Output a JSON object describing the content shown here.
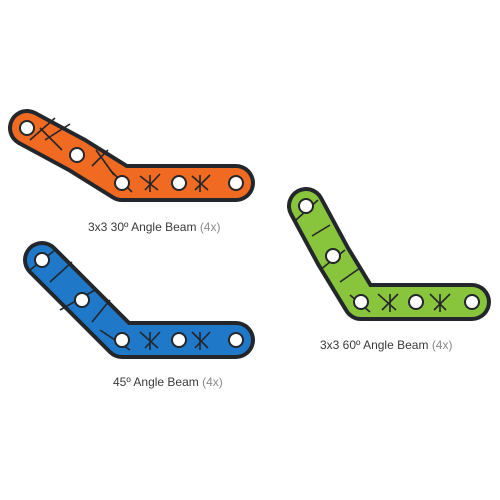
{
  "parts": [
    {
      "id": "beam-30",
      "label": "3x3 30º Angle Beam",
      "quantity": "(4x)",
      "color": "#f06a22"
    },
    {
      "id": "beam-45",
      "label": "45º Angle Beam",
      "quantity": "(4x)",
      "color": "#1f78c8"
    },
    {
      "id": "beam-60",
      "label": "3x3 60º Angle Beam",
      "quantity": "(4x)",
      "color": "#88c43c"
    }
  ],
  "outline_color": "#23262b"
}
